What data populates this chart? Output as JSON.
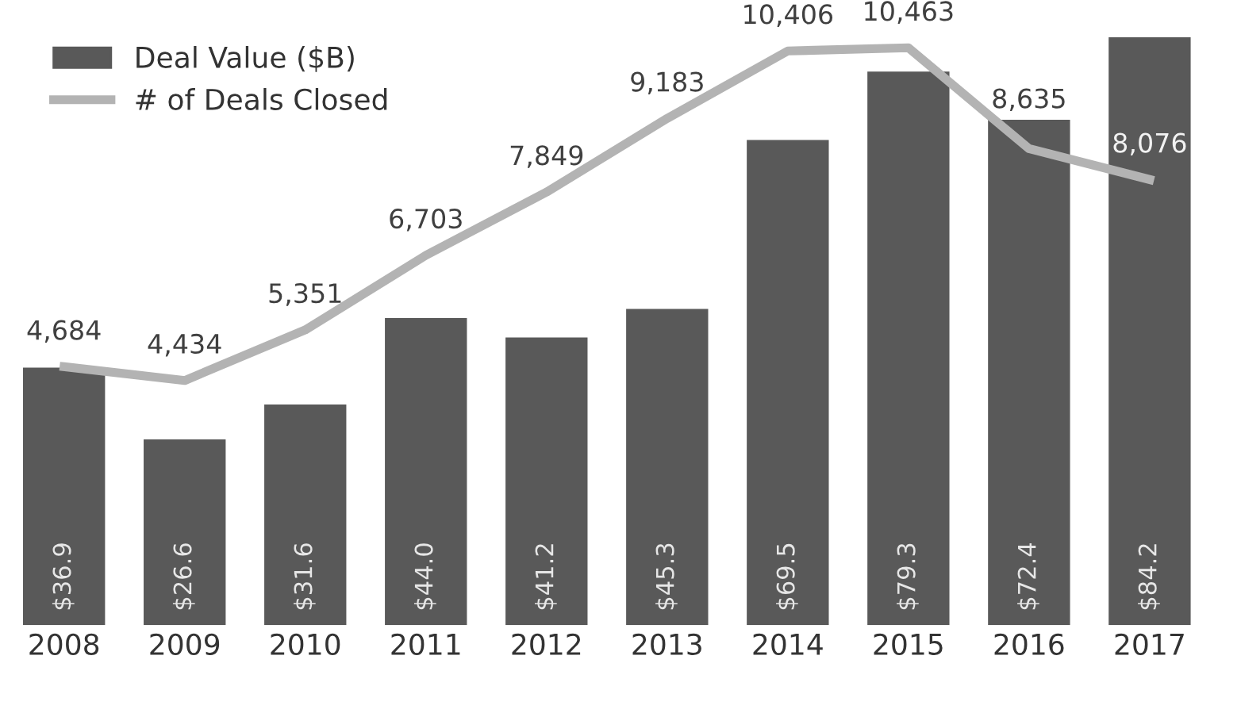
{
  "chart_data": {
    "type": "bar",
    "categories": [
      "2008",
      "2009",
      "2010",
      "2011",
      "2012",
      "2013",
      "2014",
      "2015",
      "2016",
      "2017"
    ],
    "series": [
      {
        "name": "Deal Value ($B)",
        "color": "#595959",
        "values": [
          36.9,
          26.6,
          31.6,
          44.0,
          41.2,
          45.3,
          69.5,
          79.3,
          72.4,
          84.2
        ],
        "value_labels": [
          "$36.9",
          "$26.6",
          "$31.6",
          "$44.0",
          "$41.2",
          "$45.3",
          "$69.5",
          "$79.3",
          "$72.4",
          "$84.2"
        ]
      },
      {
        "name": "# of Deals Closed",
        "type": "line",
        "axis": "y2",
        "color": "#b3b3b3",
        "values": [
          4684,
          4434,
          5351,
          6703,
          7849,
          9183,
          10406,
          10463,
          8635,
          8076
        ],
        "value_labels": [
          "4,684",
          "4,434",
          "5,351",
          "6,703",
          "7,849",
          "9,183",
          "10,406",
          "10,463",
          "8,635",
          "8,076"
        ]
      }
    ],
    "tick_labels": "x",
    "legend": "top left",
    "grid": false,
    "marker": "none",
    "line_style": "solid"
  }
}
